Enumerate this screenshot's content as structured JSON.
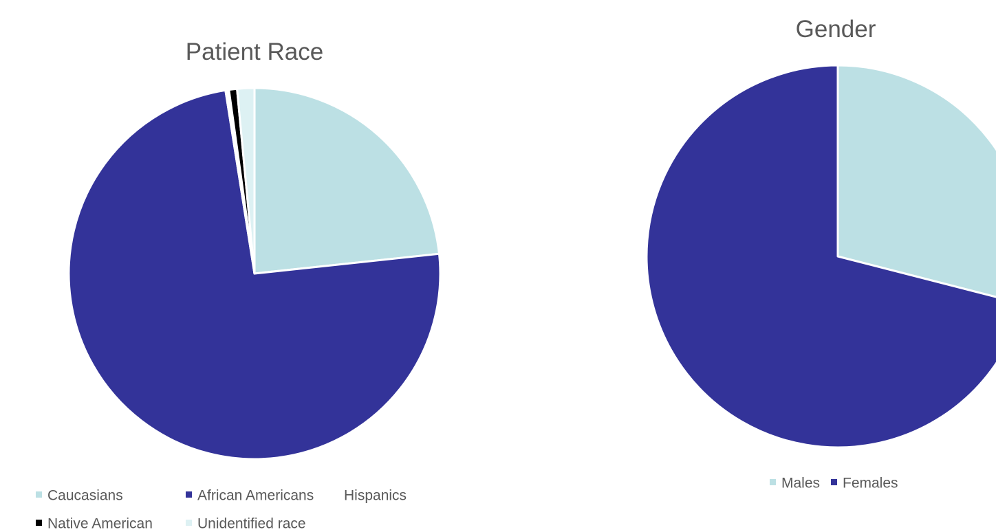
{
  "chart_data": [
    {
      "type": "pie",
      "title": "Patient Race",
      "legend_position": "bottom",
      "slices": [
        {
          "label": "Caucasians",
          "value": 23.3,
          "color": "#BCE0E4"
        },
        {
          "label": "African Americans",
          "value": 74.2,
          "color": "#333399"
        },
        {
          "label": "Hispanics",
          "value": 0.3,
          "color": "#FFFFFF"
        },
        {
          "label": "Native American",
          "value": 0.7,
          "color": "#000000"
        },
        {
          "label": "Unidentified race",
          "value": 1.5,
          "color": "#DDF1F3"
        }
      ]
    },
    {
      "type": "pie",
      "title": "Gender",
      "legend_position": "bottom",
      "slices": [
        {
          "label": "Males",
          "value": 29,
          "color": "#BCE0E4"
        },
        {
          "label": "Females",
          "value": 71,
          "color": "#333399"
        }
      ]
    }
  ]
}
